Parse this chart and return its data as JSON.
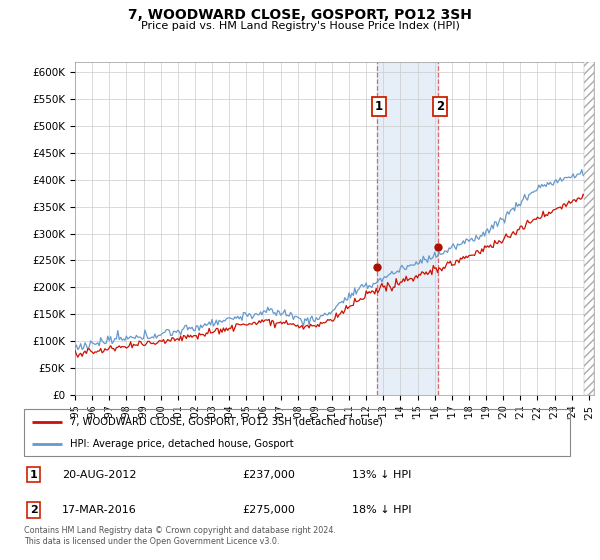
{
  "title": "7, WOODWARD CLOSE, GOSPORT, PO12 3SH",
  "subtitle": "Price paid vs. HM Land Registry's House Price Index (HPI)",
  "ylabel_ticks": [
    "£0",
    "£50K",
    "£100K",
    "£150K",
    "£200K",
    "£250K",
    "£300K",
    "£350K",
    "£400K",
    "£450K",
    "£500K",
    "£550K",
    "£600K"
  ],
  "ytick_values": [
    0,
    50000,
    100000,
    150000,
    200000,
    250000,
    300000,
    350000,
    400000,
    450000,
    500000,
    550000,
    600000
  ],
  "ylim": [
    0,
    620000
  ],
  "xlim_start": 1995.0,
  "xlim_end": 2025.3,
  "hpi_color": "#6699cc",
  "price_color": "#cc1100",
  "marker_color": "#aa1100",
  "shade_color": "#dce8f5",
  "shade_alpha": 0.7,
  "event1_x": 2012.63,
  "event2_x": 2016.21,
  "event1_price": 237000,
  "event2_price": 275000,
  "legend_house_label": "7, WOODWARD CLOSE, GOSPORT, PO12 3SH (detached house)",
  "legend_hpi_label": "HPI: Average price, detached house, Gosport",
  "footer": "Contains HM Land Registry data © Crown copyright and database right 2024.\nThis data is licensed under the Open Government Licence v3.0.",
  "grid_color": "#cccccc",
  "background_color": "#ffffff"
}
